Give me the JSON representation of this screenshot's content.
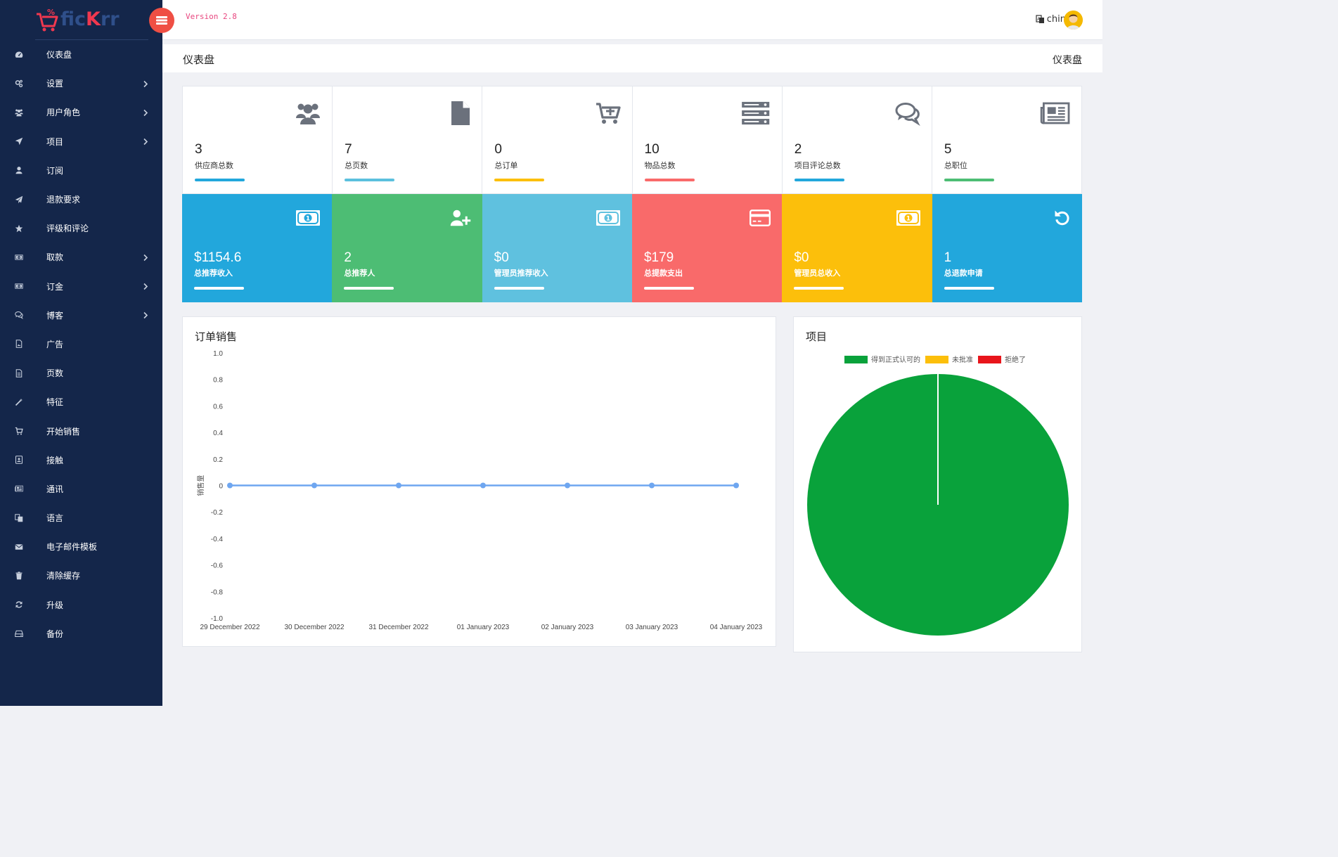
{
  "brand": {
    "logo_part1": "fic",
    "logo_part2": "K",
    "logo_part3": "rr"
  },
  "topbar": {
    "version": "Version 2.8",
    "language": "china"
  },
  "sidebar": {
    "items": [
      {
        "label": "仪表盘",
        "icon": "dashboard-icon",
        "has_sub": false
      },
      {
        "label": "设置",
        "icon": "cogs-icon",
        "has_sub": true
      },
      {
        "label": "用户角色",
        "icon": "users-icon",
        "has_sub": true
      },
      {
        "label": "项目",
        "icon": "send-icon",
        "has_sub": true
      },
      {
        "label": "订阅",
        "icon": "user-icon",
        "has_sub": false
      },
      {
        "label": "退款要求",
        "icon": "paper-plane-icon",
        "has_sub": false
      },
      {
        "label": "评级和评论",
        "icon": "star-icon",
        "has_sub": false
      },
      {
        "label": "取款",
        "icon": "money-icon",
        "has_sub": true
      },
      {
        "label": "订金",
        "icon": "money-icon",
        "has_sub": true
      },
      {
        "label": "博客",
        "icon": "comments-icon",
        "has_sub": true
      },
      {
        "label": "广告",
        "icon": "image-file-icon",
        "has_sub": false
      },
      {
        "label": "页数",
        "icon": "file-icon",
        "has_sub": false
      },
      {
        "label": "特征",
        "icon": "magic-icon",
        "has_sub": false
      },
      {
        "label": "开始销售",
        "icon": "cart-icon",
        "has_sub": false
      },
      {
        "label": "接触",
        "icon": "contact-icon",
        "has_sub": false
      },
      {
        "label": "通讯",
        "icon": "newspaper-icon",
        "has_sub": false
      },
      {
        "label": "语言",
        "icon": "language-icon",
        "has_sub": false
      },
      {
        "label": "电子邮件模板",
        "icon": "envelope-icon",
        "has_sub": false
      },
      {
        "label": "清除缓存",
        "icon": "trash-icon",
        "has_sub": false
      },
      {
        "label": "升级",
        "icon": "refresh-icon",
        "has_sub": false
      },
      {
        "label": "备份",
        "icon": "hdd-icon",
        "has_sub": false
      }
    ]
  },
  "page": {
    "title": "仪表盘",
    "breadcrumb": "仪表盘"
  },
  "stats_top": [
    {
      "value": "3",
      "label": "供应商总数",
      "icon": "users-icon",
      "bar_color": "#22a7dc"
    },
    {
      "value": "7",
      "label": "总页数",
      "icon": "file-icon",
      "bar_color": "#5bc0de"
    },
    {
      "value": "0",
      "label": "总订单",
      "icon": "cart-plus-icon",
      "bar_color": "#fcbf0b"
    },
    {
      "value": "10",
      "label": "物品总数",
      "icon": "server-icon",
      "bar_color": "#f96a6a"
    },
    {
      "value": "2",
      "label": "项目评论总数",
      "icon": "comments-icon",
      "bar_color": "#22a7dc"
    },
    {
      "value": "5",
      "label": "总职位",
      "icon": "newspaper-icon",
      "bar_color": "#4dbd74"
    }
  ],
  "stats_bottom": [
    {
      "value": "$1154.6",
      "label": "总推荐收入",
      "icon": "money-icon",
      "bg": "#22a7dc"
    },
    {
      "value": "2",
      "label": "总推荐人",
      "icon": "user-plus-icon",
      "bg": "#4dbd74"
    },
    {
      "value": "$0",
      "label": "管理员推荐收入",
      "icon": "money-icon",
      "bg": "#5fc1df"
    },
    {
      "value": "$179",
      "label": "总提款支出",
      "icon": "credit-card-icon",
      "bg": "#f96a6a"
    },
    {
      "value": "$0",
      "label": "管理员总收入",
      "icon": "money-icon",
      "bg": "#fcbf0b"
    },
    {
      "value": "1",
      "label": "总退款申请",
      "icon": "undo-icon",
      "bg": "#22a7dc"
    }
  ],
  "sales_panel": {
    "title": "订单销售"
  },
  "projects_panel": {
    "title": "项目"
  },
  "chart_data": [
    {
      "type": "line",
      "title": "订单销售",
      "xlabel": "",
      "ylabel": "销售量",
      "categories": [
        "29 December 2022",
        "30 December 2022",
        "31 December 2022",
        "01 January 2023",
        "02 January 2023",
        "03 January 2023",
        "04 January 2023"
      ],
      "series": [
        {
          "values": [
            0,
            0,
            0,
            0,
            0,
            0,
            0
          ],
          "color": "#6ea6f0"
        }
      ],
      "ylim": [
        -1.0,
        1.0
      ],
      "yticks": [
        "1.0",
        "0.8",
        "0.6",
        "0.4",
        "0.2",
        "0",
        "-0.2",
        "-0.4",
        "-0.6",
        "-0.8",
        "-1.0"
      ],
      "grid": false
    },
    {
      "type": "pie",
      "title": "项目",
      "legend_position": "top",
      "categories": [
        "得到正式认可的",
        "未批准",
        "拒绝了"
      ],
      "values": [
        1,
        0,
        0
      ],
      "colors": [
        "#09a23b",
        "#fcbf0b",
        "#e8151b"
      ]
    }
  ]
}
